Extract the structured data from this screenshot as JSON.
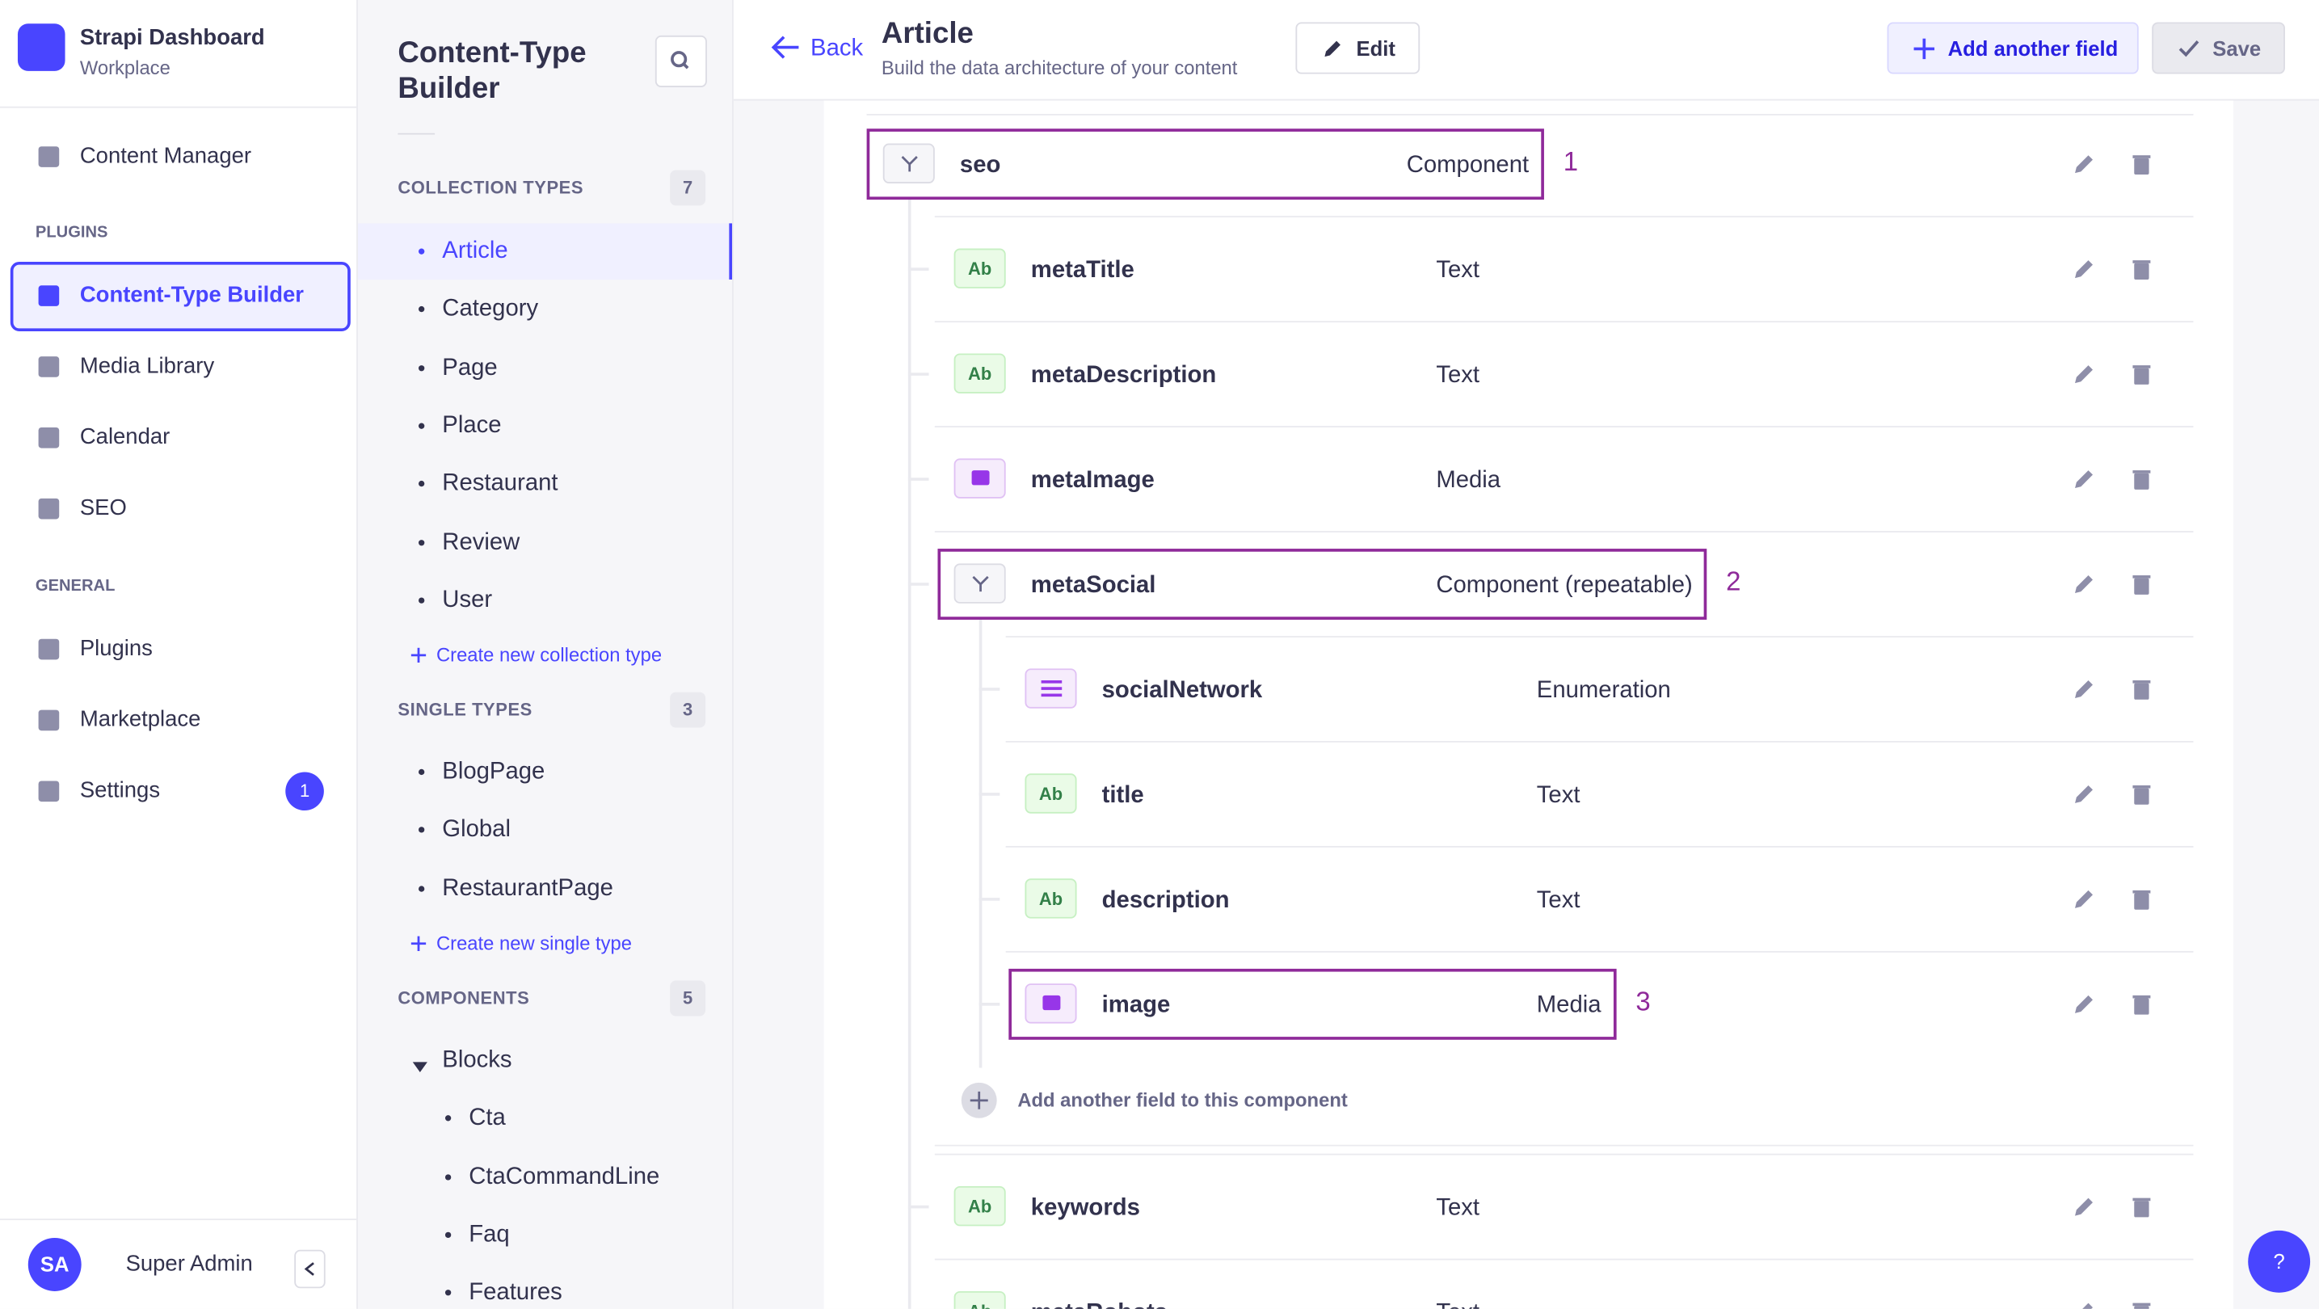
{
  "sidebar": {
    "title": "Strapi Dashboard",
    "subtitle": "Workplace",
    "top_items": [
      "Content Manager"
    ],
    "plugins": {
      "heading": "PLUGINS",
      "items": [
        "Content-Type Builder",
        "Media Library",
        "Calendar",
        "SEO"
      ]
    },
    "general": {
      "heading": "GENERAL",
      "items": [
        "Plugins",
        "Marketplace",
        "Settings"
      ]
    },
    "settings_badge": 1,
    "user": {
      "initials": "SA",
      "name": "Super Admin"
    }
  },
  "builder": {
    "title": "Content-Type Builder",
    "collection_types": {
      "heading": "COLLECTION TYPES",
      "count": 7,
      "items": [
        "Article",
        "Category",
        "Page",
        "Place",
        "Restaurant",
        "Review",
        "User"
      ],
      "create": "Create new collection type"
    },
    "single_types": {
      "heading": "SINGLE TYPES",
      "count": 3,
      "items": [
        "BlogPage",
        "Global",
        "RestaurantPage"
      ],
      "create": "Create new single type"
    },
    "components": {
      "heading": "COMPONENTS",
      "count": 5,
      "groups": [
        {
          "name": "Blocks",
          "items": [
            "Cta",
            "CtaCommandLine",
            "Faq",
            "Features"
          ]
        }
      ]
    }
  },
  "header": {
    "back": "Back",
    "title": "Article",
    "subtitle": "Build the data architecture of your content",
    "edit": "Edit",
    "add_field": "Add another field",
    "save": "Save"
  },
  "fields": [
    {
      "name": "seo",
      "type": "Component",
      "depth": 0,
      "kind": "component",
      "callout": "1"
    },
    {
      "name": "metaTitle",
      "type": "Text",
      "depth": 1,
      "kind": "text",
      "badge": "Ab"
    },
    {
      "name": "metaDescription",
      "type": "Text",
      "depth": 1,
      "kind": "text",
      "badge": "Ab"
    },
    {
      "name": "metaImage",
      "type": "Media",
      "depth": 1,
      "kind": "media"
    },
    {
      "name": "metaSocial",
      "type": "Component (repeatable)",
      "depth": 1,
      "kind": "component",
      "callout": "2"
    },
    {
      "name": "socialNetwork",
      "type": "Enumeration",
      "depth": 2,
      "kind": "enum"
    },
    {
      "name": "title",
      "type": "Text",
      "depth": 2,
      "kind": "text",
      "badge": "Ab"
    },
    {
      "name": "description",
      "type": "Text",
      "depth": 2,
      "kind": "text",
      "badge": "Ab"
    },
    {
      "name": "image",
      "type": "Media",
      "depth": 2,
      "kind": "media",
      "callout": "3"
    },
    {
      "name": "keywords",
      "type": "Text",
      "depth": 1,
      "kind": "text",
      "badge": "Ab"
    },
    {
      "name": "metaRobots",
      "type": "Text",
      "depth": 1,
      "kind": "text",
      "badge": "Ab"
    }
  ],
  "add_component_field": "Add another field to this component",
  "help": "?"
}
